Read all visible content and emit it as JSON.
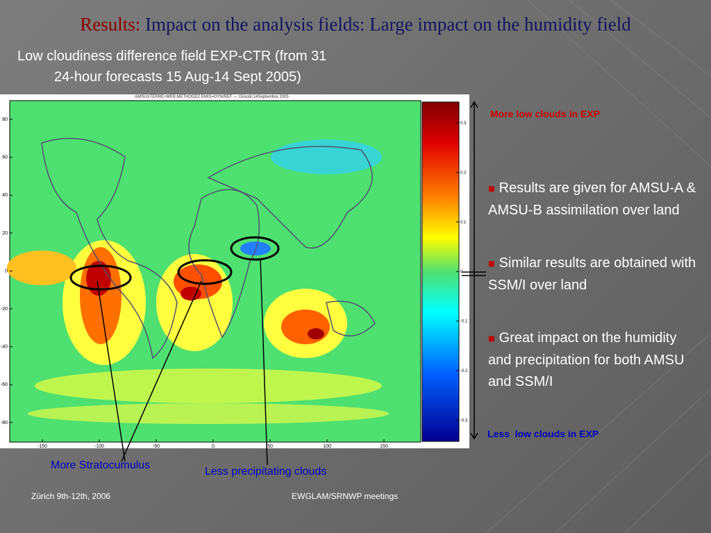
{
  "title": {
    "lead": "Results:",
    "text": "Impact on the analysis fields: Large impact on the humidity field"
  },
  "subtitle": [
    "Low cloudiness difference field EXP-CTR (from 31",
    "24-hour forecasts 15 Aug-14 Sept 2005)"
  ],
  "figure": {
    "caption": "AMSUXTERRE+MER,METHODEZ EMIS=DYN/REF — 15Août-14Septembre 2005",
    "y_ticks": [
      "80",
      "60",
      "40",
      "20",
      "0",
      "-20",
      "-40",
      "-60",
      "-80"
    ],
    "x_ticks": [
      "-150",
      "-100",
      "-50",
      "0",
      "50",
      "100",
      "150"
    ],
    "colorbar_ticks": [
      "0.3",
      "0.2",
      "0.1",
      "0",
      "-0.1",
      "-0.2",
      "-0.3"
    ]
  },
  "annotations": {
    "top": "More low clouds in EXP",
    "bottom": "Less  low clouds in EXP",
    "stratocumulus": "More Stratocumulus",
    "precip": "Less precipitating clouds"
  },
  "bullets": [
    "Results are given for AMSU-A & AMSU-B assimilation over land",
    "Similar results are obtained with SSM/I over land",
    "Great impact on the humidity and precipitation for both AMSU and SSM/I"
  ],
  "footer": {
    "left": "Zürich 9th-12th, 2006",
    "center": "EWGLAM/SRNWP meetings"
  }
}
